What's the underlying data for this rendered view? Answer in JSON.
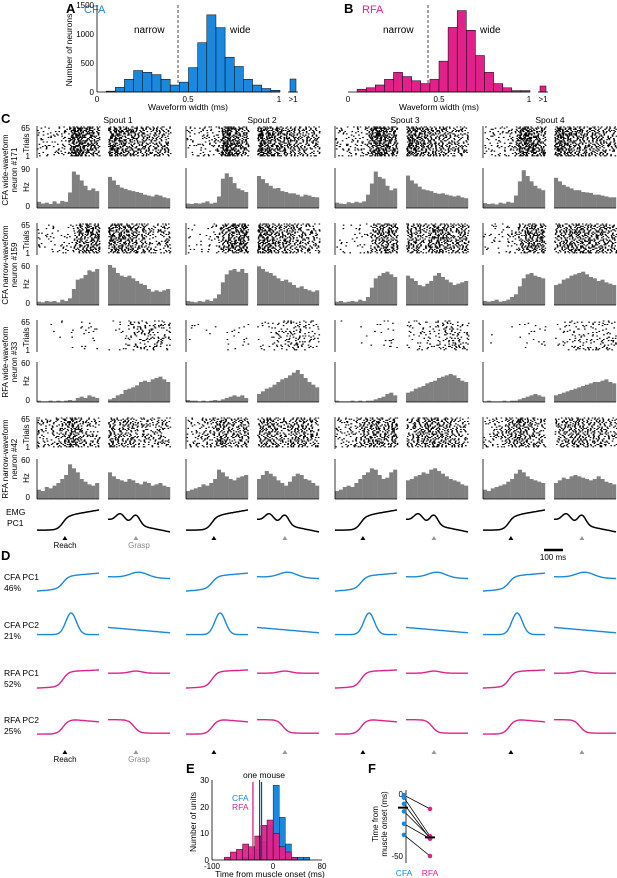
{
  "panels": {
    "A": {
      "letter": "A",
      "tag": "CFA",
      "narrow": "narrow",
      "wide": "wide",
      "ylabel": "Number of neurons",
      "xlabel": "Waveform width (ms)",
      "yticks": [
        "0",
        "500",
        "1000",
        "1500"
      ],
      "xticks": [
        "0",
        "0.5",
        "1"
      ],
      "overflow_tick": ">1"
    },
    "B": {
      "letter": "B",
      "tag": "RFA",
      "narrow": "narrow",
      "wide": "wide",
      "xlabel": "Waveform width (ms)",
      "xticks": [
        "0",
        "0.5",
        "1"
      ],
      "overflow_tick": ">1"
    },
    "C": {
      "letter": "C",
      "spouts": [
        "Spout 1",
        "Spout 2",
        "Spout 3",
        "Spout 4"
      ],
      "neurons": [
        {
          "label1": "CFA wide-waveform",
          "label2": "neuron #171",
          "trials_top": "65",
          "trials_bottom": "1",
          "hz_top": "90",
          "hz_bottom": "0"
        },
        {
          "label1": "CFA narrow-waveform",
          "label2": "neuron #159",
          "trials_top": "65",
          "trials_bottom": "1",
          "hz_top": "60",
          "hz_bottom": "0"
        },
        {
          "label1": "RFA wide-waveform",
          "label2": "neuron #33",
          "trials_top": "65",
          "trials_bottom": "1",
          "hz_top": "60",
          "hz_bottom": "0"
        },
        {
          "label1": "RFA narrow-waveform",
          "label2": "neuron #42",
          "trials_top": "65",
          "trials_bottom": "1",
          "hz_top": "60",
          "hz_bottom": "0"
        }
      ],
      "trials_label": "Trials",
      "hz_label": "Hz",
      "emg_label1": "EMG",
      "emg_label2": "PC1",
      "reach": "Reach",
      "grasp": "Grasp",
      "scalebar": "100 ms"
    },
    "D": {
      "letter": "D",
      "rows": [
        {
          "name": "CFA PC1",
          "pct": "46%"
        },
        {
          "name": "CFA PC2",
          "pct": "21%"
        },
        {
          "name": "RFA PC1",
          "pct": "52%"
        },
        {
          "name": "RFA PC2",
          "pct": "25%"
        }
      ],
      "reach": "Reach",
      "grasp": "Grasp"
    },
    "E": {
      "letter": "E",
      "ylabel": "Number of units",
      "xlabel": "Time from muscle onset (ms)",
      "annotation": "one mouse",
      "legend": [
        "CFA",
        "RFA"
      ],
      "yticks": [
        "0",
        "10",
        "20",
        "30"
      ],
      "xticks": [
        "-100",
        "0",
        "80"
      ]
    },
    "F": {
      "letter": "F",
      "ylabel1": "Time from",
      "ylabel2": "muscle onset (ms)",
      "yticks": [
        "0",
        "-50"
      ],
      "categories": [
        "CFA",
        "RFA"
      ]
    }
  },
  "colors": {
    "cfa": "#1a88dd",
    "rfa": "#e0218a",
    "psth": "#808080"
  },
  "chart_data": [
    {
      "panel": "A",
      "type": "bar",
      "title": "CFA",
      "xlabel": "Waveform width (ms)",
      "ylabel": "Number of neurons",
      "xlim": [
        0,
        1.0
      ],
      "ylim": [
        0,
        1500
      ],
      "x": [
        0.025,
        0.075,
        0.125,
        0.175,
        0.225,
        0.275,
        0.325,
        0.375,
        0.425,
        0.475,
        0.525,
        0.575,
        0.625,
        0.675,
        0.725,
        0.775,
        0.825,
        0.875,
        0.925,
        0.975
      ],
      "values": [
        0,
        15,
        80,
        220,
        370,
        340,
        300,
        220,
        120,
        170,
        420,
        850,
        1330,
        1110,
        600,
        440,
        220,
        120,
        60,
        30
      ],
      "overflow_value": 210
    },
    {
      "panel": "B",
      "type": "bar",
      "title": "RFA",
      "xlabel": "Waveform width (ms)",
      "xlim": [
        0,
        1.0
      ],
      "x": [
        0.025,
        0.075,
        0.125,
        0.175,
        0.225,
        0.275,
        0.325,
        0.375,
        0.425,
        0.475,
        0.525,
        0.575,
        0.625,
        0.675,
        0.725,
        0.775,
        0.825,
        0.875,
        0.925,
        0.975
      ],
      "values": [
        0,
        2,
        3,
        5,
        9,
        14,
        11,
        8,
        6,
        9,
        22,
        46,
        58,
        44,
        26,
        14,
        6,
        3,
        1,
        1
      ],
      "overflow_value": 10
    },
    {
      "panel": "C",
      "type": "bar",
      "series": [
        {
          "name": "CFA wide-waveform neuron #171",
          "values": [
            [
              14,
              10,
              12,
              9,
              15,
              10,
              16,
              14,
              35,
              82,
              75,
              62,
              50,
              40,
              44,
              38
            ],
            [
              70,
              62,
              52,
              46,
              43,
              40,
              38,
              36,
              34,
              30,
              28,
              26,
              30,
              28,
              24,
              22
            ],
            [
              10,
              9,
              11,
              10,
              12,
              15,
              10,
              12,
              26,
              66,
              78,
              70,
              56,
              44,
              40,
              36
            ],
            [
              72,
              65,
              56,
              50,
              44,
              45,
              38,
              36,
              33,
              33,
              30,
              26,
              30,
              28,
              25,
              24
            ],
            [
              12,
              10,
              9,
              13,
              11,
              14,
              12,
              15,
              30,
              55,
              82,
              70,
              66,
              50,
              40,
              44
            ],
            [
              73,
              62,
              55,
              48,
              42,
              40,
              38,
              34,
              32,
              33,
              30,
              28,
              26,
              28,
              24,
              22
            ],
            [
              11,
              9,
              10,
              8,
              12,
              10,
              14,
              12,
              28,
              60,
              85,
              72,
              60,
              50,
              44,
              40
            ],
            [
              68,
              60,
              52,
              48,
              44,
              40,
              40,
              36,
              35,
              34,
              30,
              30,
              28,
              26,
              24,
              24
            ]
          ]
        },
        {
          "name": "CFA narrow-waveform neuron #159",
          "values": [
            [
              5,
              4,
              6,
              5,
              6,
              4,
              8,
              6,
              10,
              24,
              38,
              40,
              45,
              52,
              50,
              54
            ],
            [
              60,
              56,
              48,
              44,
              42,
              44,
              40,
              36,
              32,
              30,
              24,
              20,
              22,
              20,
              22,
              24
            ],
            [
              6,
              5,
              4,
              6,
              5,
              8,
              6,
              10,
              16,
              34,
              46,
              52,
              54,
              50,
              54,
              48
            ],
            [
              58,
              54,
              50,
              48,
              44,
              40,
              36,
              38,
              34,
              30,
              26,
              28,
              24,
              22,
              20,
              22
            ],
            [
              5,
              6,
              4,
              5,
              6,
              5,
              8,
              6,
              12,
              26,
              40,
              44,
              48,
              50,
              46,
              42
            ],
            [
              44,
              40,
              36,
              30,
              28,
              32,
              36,
              44,
              48,
              42,
              38,
              34,
              30,
              32,
              34,
              36
            ],
            [
              6,
              5,
              6,
              8,
              5,
              6,
              8,
              12,
              16,
              28,
              40,
              46,
              48,
              44,
              42,
              40
            ],
            [
              30,
              32,
              38,
              40,
              44,
              46,
              48,
              50,
              46,
              42,
              40,
              36,
              38,
              34,
              32,
              30
            ]
          ]
        },
        {
          "name": "RFA wide-waveform neuron #33",
          "values": [
            [
              2,
              1,
              1,
              2,
              1,
              2,
              1,
              2,
              3,
              2,
              6,
              8,
              6,
              10,
              8,
              6
            ],
            [
              4,
              6,
              10,
              12,
              18,
              20,
              22,
              25,
              30,
              32,
              30,
              34,
              36,
              38,
              34,
              30
            ],
            [
              3,
              2,
              2,
              1,
              2,
              1,
              2,
              3,
              2,
              4,
              6,
              8,
              10,
              8,
              10,
              6
            ],
            [
              12,
              16,
              20,
              22,
              26,
              30,
              34,
              36,
              40,
              44,
              48,
              42,
              36,
              30,
              26,
              22
            ],
            [
              2,
              1,
              1,
              1,
              2,
              1,
              2,
              1,
              2,
              2,
              4,
              6,
              8,
              12,
              14,
              10
            ],
            [
              14,
              16,
              20,
              22,
              24,
              28,
              30,
              32,
              36,
              38,
              40,
              42,
              40,
              36,
              32,
              30
            ],
            [
              1,
              2,
              1,
              1,
              1,
              2,
              1,
              2,
              2,
              4,
              6,
              8,
              10,
              12,
              10,
              8
            ],
            [
              10,
              12,
              14,
              16,
              18,
              20,
              22,
              24,
              26,
              28,
              30,
              30,
              32,
              34,
              30,
              28
            ]
          ]
        },
        {
          "name": "RFA narrow-waveform neuron #42",
          "values": [
            [
              14,
              12,
              18,
              16,
              20,
              24,
              30,
              36,
              52,
              46,
              40,
              30,
              26,
              22,
              20,
              24
            ],
            [
              40,
              34,
              30,
              28,
              26,
              30,
              28,
              24,
              22,
              26,
              24,
              20,
              22,
              24,
              20,
              18
            ],
            [
              12,
              14,
              16,
              18,
              22,
              20,
              24,
              30,
              44,
              40,
              34,
              30,
              28,
              32,
              34,
              36
            ],
            [
              30,
              36,
              42,
              38,
              34,
              28,
              24,
              20,
              26,
              34,
              38,
              36,
              30,
              28,
              24,
              20
            ],
            [
              12,
              14,
              18,
              20,
              18,
              24,
              30,
              36,
              40,
              46,
              44,
              36,
              30,
              32,
              40,
              44
            ],
            [
              28,
              30,
              34,
              36,
              40,
              38,
              44,
              46,
              42,
              38,
              34,
              30,
              28,
              26,
              22,
              20
            ],
            [
              14,
              12,
              16,
              18,
              20,
              22,
              26,
              30,
              38,
              44,
              40,
              34,
              30,
              28,
              26,
              24
            ],
            [
              24,
              28,
              32,
              30,
              34,
              36,
              34,
              32,
              30,
              28,
              30,
              34,
              30,
              26,
              24,
              22
            ]
          ]
        }
      ]
    },
    {
      "panel": "E",
      "type": "bar",
      "xlabel": "Time from muscle onset (ms)",
      "ylabel": "Number of units",
      "xlim": [
        -100,
        80
      ],
      "ylim": [
        0,
        30
      ],
      "x": [
        -95,
        -85,
        -75,
        -65,
        -55,
        -45,
        -35,
        -25,
        -15,
        -5,
        5,
        15,
        25,
        35,
        45,
        55,
        65,
        75
      ],
      "series": [
        {
          "name": "CFA",
          "values": [
            0,
            0,
            0,
            0,
            0,
            1,
            2,
            4,
            7,
            13,
            28,
            16,
            6,
            1,
            1,
            1,
            0,
            0
          ]
        },
        {
          "name": "RFA",
          "values": [
            0,
            0,
            1,
            3,
            4,
            6,
            5,
            9,
            13,
            15,
            10,
            5,
            3,
            1,
            0,
            0,
            0,
            0
          ]
        }
      ],
      "annotation_x": -22,
      "cfa_median_x": -19,
      "rfa_median_x": -33
    },
    {
      "panel": "F",
      "type": "scatter",
      "ylabel": "Time from muscle onset (ms)",
      "categories": [
        "CFA",
        "RFA"
      ],
      "ylim": [
        -55,
        5
      ],
      "pairs": [
        [
          -1,
          -12
        ],
        [
          -3,
          -34
        ],
        [
          -8,
          -36
        ],
        [
          -14,
          -35
        ],
        [
          -24,
          -36
        ],
        [
          -33,
          -50
        ]
      ],
      "medians": [
        -11,
        -35
      ]
    }
  ]
}
